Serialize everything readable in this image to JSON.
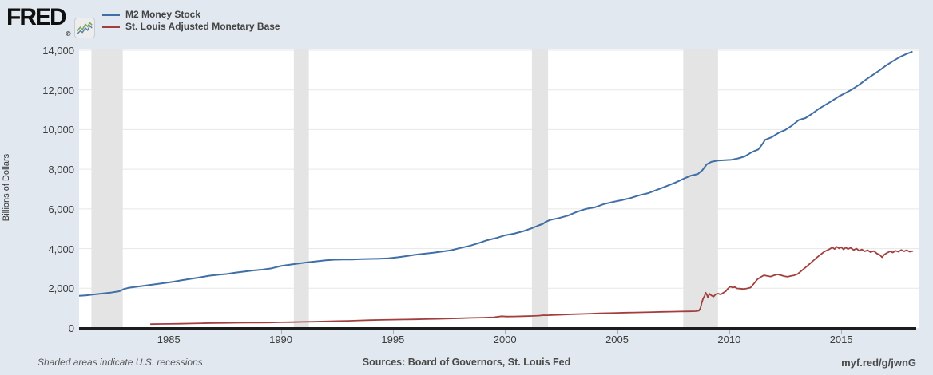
{
  "header": {
    "logo_text": "FRED",
    "registered_mark": "®",
    "legend": [
      {
        "label": "M2 Money Stock",
        "color": "#3f6fa6"
      },
      {
        "label": "St. Louis Adjusted Monetary Base",
        "color": "#a23e3e"
      }
    ]
  },
  "footer": {
    "note": "Shaded areas indicate U.S. recessions",
    "sources": "Sources: Board of Governors, St. Louis Fed",
    "short_url": "myf.red/g/jwnG"
  },
  "colors": {
    "background": "#e2e8f0",
    "plot_background": "#ffffff",
    "gridline": "#e7e7e7",
    "recession_band": "#e4e4e4",
    "axis": "#1c1c1c",
    "m2_line": "#3f6fa6",
    "base_line": "#a23e3e"
  },
  "chart_data": {
    "type": "line",
    "title": "",
    "xlabel": "",
    "ylabel": "Billions of Dollars",
    "xlim": [
      1981.0,
      2018.45
    ],
    "ylim": [
      0,
      14080
    ],
    "grid": true,
    "legend_position": "top-left",
    "x_ticks": [
      {
        "value": 1985,
        "label": "1985"
      },
      {
        "value": 1990,
        "label": "1990"
      },
      {
        "value": 1995,
        "label": "1995"
      },
      {
        "value": 2000,
        "label": "2000"
      },
      {
        "value": 2005,
        "label": "2005"
      },
      {
        "value": 2010,
        "label": "2010"
      },
      {
        "value": 2015,
        "label": "2015"
      }
    ],
    "y_ticks": [
      {
        "value": 0,
        "label": "0"
      },
      {
        "value": 2000,
        "label": "2,000"
      },
      {
        "value": 4000,
        "label": "4,000"
      },
      {
        "value": 6000,
        "label": "6,000"
      },
      {
        "value": 8000,
        "label": "8,000"
      },
      {
        "value": 10000,
        "label": "10,000"
      },
      {
        "value": 12000,
        "label": "12,000"
      },
      {
        "value": 14000,
        "label": "14,000"
      }
    ],
    "recessions": [
      [
        1981.55,
        1982.95
      ],
      [
        1990.58,
        1991.25
      ],
      [
        2001.2,
        2001.92
      ],
      [
        2007.95,
        2009.5
      ]
    ],
    "series": [
      {
        "name": "M2 Money Stock",
        "color": "#3f6fa6",
        "width": 2,
        "points": [
          [
            1981.0,
            1620
          ],
          [
            1981.3,
            1640
          ],
          [
            1981.6,
            1680
          ],
          [
            1982.0,
            1730
          ],
          [
            1982.4,
            1780
          ],
          [
            1982.8,
            1850
          ],
          [
            1983.0,
            1960
          ],
          [
            1983.2,
            2020
          ],
          [
            1983.6,
            2080
          ],
          [
            1984.0,
            2140
          ],
          [
            1984.4,
            2200
          ],
          [
            1984.8,
            2260
          ],
          [
            1985.2,
            2330
          ],
          [
            1985.6,
            2410
          ],
          [
            1986.0,
            2480
          ],
          [
            1986.4,
            2550
          ],
          [
            1986.8,
            2630
          ],
          [
            1987.2,
            2680
          ],
          [
            1987.6,
            2720
          ],
          [
            1988.0,
            2790
          ],
          [
            1988.4,
            2850
          ],
          [
            1988.8,
            2900
          ],
          [
            1989.2,
            2940
          ],
          [
            1989.6,
            3010
          ],
          [
            1990.0,
            3120
          ],
          [
            1990.4,
            3190
          ],
          [
            1990.8,
            3250
          ],
          [
            1991.2,
            3310
          ],
          [
            1991.6,
            3360
          ],
          [
            1992.0,
            3410
          ],
          [
            1992.4,
            3440
          ],
          [
            1992.8,
            3450
          ],
          [
            1993.2,
            3450
          ],
          [
            1993.6,
            3470
          ],
          [
            1994.0,
            3480
          ],
          [
            1994.4,
            3490
          ],
          [
            1994.8,
            3510
          ],
          [
            1995.2,
            3560
          ],
          [
            1995.6,
            3620
          ],
          [
            1996.0,
            3690
          ],
          [
            1996.4,
            3740
          ],
          [
            1996.8,
            3790
          ],
          [
            1997.2,
            3850
          ],
          [
            1997.6,
            3920
          ],
          [
            1998.0,
            4030
          ],
          [
            1998.4,
            4130
          ],
          [
            1998.8,
            4270
          ],
          [
            1999.2,
            4420
          ],
          [
            1999.6,
            4530
          ],
          [
            2000.0,
            4670
          ],
          [
            2000.4,
            4750
          ],
          [
            2000.8,
            4870
          ],
          [
            2001.2,
            5030
          ],
          [
            2001.5,
            5170
          ],
          [
            2001.7,
            5250
          ],
          [
            2001.8,
            5340
          ],
          [
            2002.0,
            5440
          ],
          [
            2002.4,
            5540
          ],
          [
            2002.8,
            5660
          ],
          [
            2003.2,
            5850
          ],
          [
            2003.6,
            6000
          ],
          [
            2004.0,
            6080
          ],
          [
            2004.4,
            6240
          ],
          [
            2004.8,
            6350
          ],
          [
            2005.2,
            6440
          ],
          [
            2005.6,
            6550
          ],
          [
            2006.0,
            6690
          ],
          [
            2006.4,
            6800
          ],
          [
            2006.8,
            6970
          ],
          [
            2007.2,
            7150
          ],
          [
            2007.6,
            7330
          ],
          [
            2008.0,
            7540
          ],
          [
            2008.3,
            7680
          ],
          [
            2008.6,
            7760
          ],
          [
            2008.8,
            7950
          ],
          [
            2009.0,
            8250
          ],
          [
            2009.2,
            8370
          ],
          [
            2009.5,
            8440
          ],
          [
            2009.8,
            8460
          ],
          [
            2010.1,
            8480
          ],
          [
            2010.4,
            8550
          ],
          [
            2010.7,
            8650
          ],
          [
            2011.0,
            8860
          ],
          [
            2011.3,
            9000
          ],
          [
            2011.5,
            9300
          ],
          [
            2011.6,
            9480
          ],
          [
            2011.9,
            9620
          ],
          [
            2012.2,
            9830
          ],
          [
            2012.5,
            9980
          ],
          [
            2012.8,
            10200
          ],
          [
            2013.1,
            10480
          ],
          [
            2013.4,
            10580
          ],
          [
            2013.7,
            10800
          ],
          [
            2014.0,
            11050
          ],
          [
            2014.3,
            11250
          ],
          [
            2014.6,
            11460
          ],
          [
            2014.9,
            11680
          ],
          [
            2015.2,
            11850
          ],
          [
            2015.5,
            12040
          ],
          [
            2015.8,
            12260
          ],
          [
            2016.1,
            12520
          ],
          [
            2016.4,
            12750
          ],
          [
            2016.7,
            12980
          ],
          [
            2017.0,
            13230
          ],
          [
            2017.3,
            13450
          ],
          [
            2017.6,
            13650
          ],
          [
            2017.9,
            13810
          ],
          [
            2018.15,
            13920
          ]
        ]
      },
      {
        "name": "St. Louis Adjusted Monetary Base",
        "color": "#a23e3e",
        "width": 1.8,
        "points": [
          [
            1984.2,
            195
          ],
          [
            1984.6,
            200
          ],
          [
            1985.0,
            207
          ],
          [
            1985.5,
            215
          ],
          [
            1986.0,
            225
          ],
          [
            1986.5,
            237
          ],
          [
            1987.0,
            248
          ],
          [
            1987.5,
            255
          ],
          [
            1988.0,
            260
          ],
          [
            1988.5,
            266
          ],
          [
            1989.0,
            270
          ],
          [
            1989.5,
            275
          ],
          [
            1990.0,
            284
          ],
          [
            1990.5,
            295
          ],
          [
            1991.0,
            305
          ],
          [
            1991.5,
            315
          ],
          [
            1992.0,
            330
          ],
          [
            1992.5,
            345
          ],
          [
            1993.0,
            360
          ],
          [
            1993.5,
            378
          ],
          [
            1994.0,
            395
          ],
          [
            1994.5,
            408
          ],
          [
            1995.0,
            418
          ],
          [
            1995.5,
            427
          ],
          [
            1996.0,
            436
          ],
          [
            1996.5,
            446
          ],
          [
            1997.0,
            460
          ],
          [
            1997.5,
            475
          ],
          [
            1998.0,
            490
          ],
          [
            1998.5,
            505
          ],
          [
            1999.0,
            520
          ],
          [
            1999.5,
            540
          ],
          [
            1999.85,
            590
          ],
          [
            2000.05,
            575
          ],
          [
            2000.4,
            580
          ],
          [
            2000.8,
            590
          ],
          [
            2001.2,
            605
          ],
          [
            2001.5,
            620
          ],
          [
            2001.72,
            645
          ],
          [
            2001.9,
            640
          ],
          [
            2002.2,
            655
          ],
          [
            2002.6,
            670
          ],
          [
            2003.0,
            690
          ],
          [
            2003.4,
            705
          ],
          [
            2003.8,
            720
          ],
          [
            2004.2,
            735
          ],
          [
            2004.6,
            748
          ],
          [
            2005.0,
            760
          ],
          [
            2005.4,
            772
          ],
          [
            2005.8,
            782
          ],
          [
            2006.2,
            790
          ],
          [
            2006.6,
            800
          ],
          [
            2007.0,
            812
          ],
          [
            2007.4,
            820
          ],
          [
            2007.8,
            828
          ],
          [
            2008.2,
            836
          ],
          [
            2008.5,
            845
          ],
          [
            2008.65,
            870
          ],
          [
            2008.72,
            1000
          ],
          [
            2008.78,
            1280
          ],
          [
            2008.84,
            1490
          ],
          [
            2008.9,
            1605
          ],
          [
            2008.95,
            1780
          ],
          [
            2009.0,
            1690
          ],
          [
            2009.05,
            1530
          ],
          [
            2009.12,
            1720
          ],
          [
            2009.2,
            1640
          ],
          [
            2009.3,
            1580
          ],
          [
            2009.4,
            1700
          ],
          [
            2009.5,
            1730
          ],
          [
            2009.62,
            1690
          ],
          [
            2009.75,
            1780
          ],
          [
            2009.85,
            1850
          ],
          [
            2009.95,
            1990
          ],
          [
            2010.05,
            2090
          ],
          [
            2010.15,
            2030
          ],
          [
            2010.25,
            2060
          ],
          [
            2010.35,
            1990
          ],
          [
            2010.5,
            1980
          ],
          [
            2010.65,
            1960
          ],
          [
            2010.8,
            1990
          ],
          [
            2010.95,
            2030
          ],
          [
            2011.1,
            2230
          ],
          [
            2011.25,
            2440
          ],
          [
            2011.4,
            2560
          ],
          [
            2011.55,
            2655
          ],
          [
            2011.7,
            2620
          ],
          [
            2011.85,
            2590
          ],
          [
            2012.0,
            2650
          ],
          [
            2012.15,
            2700
          ],
          [
            2012.3,
            2660
          ],
          [
            2012.45,
            2610
          ],
          [
            2012.6,
            2580
          ],
          [
            2012.75,
            2620
          ],
          [
            2012.9,
            2650
          ],
          [
            2013.05,
            2720
          ],
          [
            2013.2,
            2860
          ],
          [
            2013.35,
            3000
          ],
          [
            2013.5,
            3140
          ],
          [
            2013.65,
            3290
          ],
          [
            2013.8,
            3440
          ],
          [
            2013.95,
            3590
          ],
          [
            2014.1,
            3720
          ],
          [
            2014.25,
            3850
          ],
          [
            2014.4,
            3930
          ],
          [
            2014.5,
            3990
          ],
          [
            2014.6,
            4060
          ],
          [
            2014.7,
            3980
          ],
          [
            2014.8,
            4090
          ],
          [
            2014.9,
            4010
          ],
          [
            2015.0,
            4070
          ],
          [
            2015.1,
            3960
          ],
          [
            2015.2,
            4050
          ],
          [
            2015.3,
            3980
          ],
          [
            2015.42,
            4040
          ],
          [
            2015.55,
            3930
          ],
          [
            2015.68,
            4000
          ],
          [
            2015.8,
            3890
          ],
          [
            2015.92,
            3960
          ],
          [
            2016.05,
            3860
          ],
          [
            2016.18,
            3920
          ],
          [
            2016.3,
            3820
          ],
          [
            2016.45,
            3880
          ],
          [
            2016.6,
            3740
          ],
          [
            2016.72,
            3680
          ],
          [
            2016.82,
            3560
          ],
          [
            2016.92,
            3700
          ],
          [
            2017.05,
            3790
          ],
          [
            2017.18,
            3860
          ],
          [
            2017.3,
            3800
          ],
          [
            2017.42,
            3890
          ],
          [
            2017.55,
            3840
          ],
          [
            2017.68,
            3930
          ],
          [
            2017.8,
            3860
          ],
          [
            2017.92,
            3920
          ],
          [
            2018.05,
            3840
          ],
          [
            2018.18,
            3870
          ]
        ]
      }
    ]
  }
}
